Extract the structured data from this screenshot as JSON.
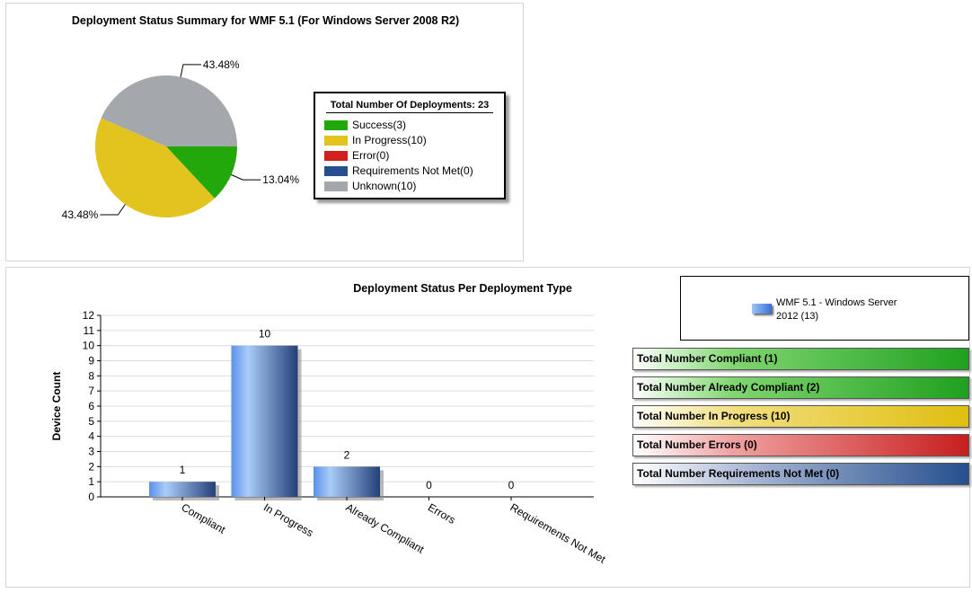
{
  "pie_panel": {
    "title": "Deployment Status Summary for WMF 5.1 (For Windows Server 2008 R2)",
    "legend_header": "Total Number Of Deployments: 23"
  },
  "bar_panel": {
    "series_legend_label": "WMF 5.1 - Windows Server 2012 (13)",
    "totals": {
      "compliant": "Total Number Compliant (1)",
      "already_compliant": "Total Number Already Compliant (2)",
      "in_progress": "Total Number In Progress (10)",
      "errors": "Total Number Errors (0)",
      "requirements_not_met": "Total Number Requirements Not Met (0)"
    }
  },
  "chart_data": [
    {
      "type": "pie",
      "title": "Deployment Status Summary for WMF 5.1 (For Windows Server 2008 R2)",
      "legend_title": "Total Number Of Deployments: 23",
      "legend_position": "right",
      "slices": [
        {
          "label": "Success(3)",
          "value": 3,
          "pct_label": "13.04%",
          "color": "#22a80a"
        },
        {
          "label": "In Progress(10)",
          "value": 10,
          "pct_label": "43.48%",
          "color": "#e3c41e"
        },
        {
          "label": "Error(0)",
          "value": 0,
          "pct_label": "",
          "color": "#d2201e"
        },
        {
          "label": "Requirements Not Met(0)",
          "value": 0,
          "pct_label": "",
          "color": "#264f8e"
        },
        {
          "label": "Unknown(10)",
          "value": 10,
          "pct_label": "43.48%",
          "color": "#a4a7ab"
        }
      ]
    },
    {
      "type": "bar",
      "title": "Deployment Status Per Deployment Type",
      "ylabel": "Device Count",
      "xlabel": "",
      "categories": [
        "Compliant",
        "In Progress",
        "Already Compliant",
        "Errors",
        "Requirements Not Met"
      ],
      "series": [
        {
          "name": "WMF 5.1 - Windows Server 2012 (13)",
          "values": [
            1,
            10,
            2,
            0,
            0
          ],
          "color": "#4a86e8"
        }
      ],
      "ylim": [
        0,
        12
      ],
      "yticks": [
        0,
        1,
        2,
        3,
        4,
        5,
        6,
        7,
        8,
        9,
        10,
        11,
        12
      ],
      "grid": true,
      "legend_position": "top-right"
    }
  ]
}
